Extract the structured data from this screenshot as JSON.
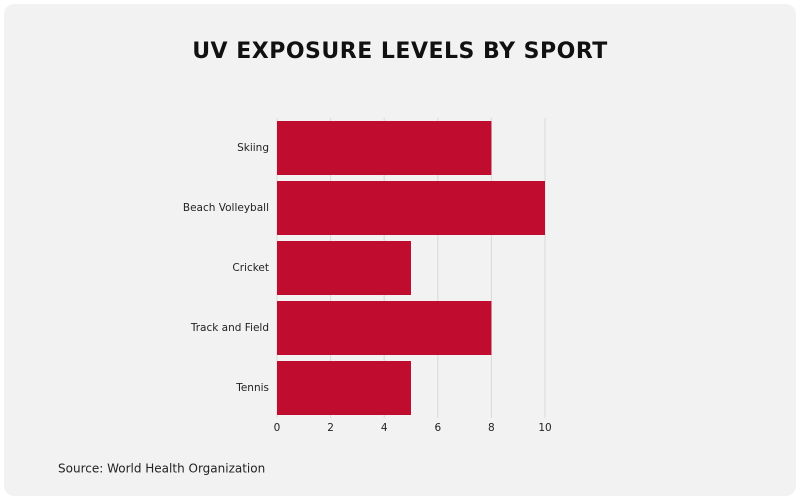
{
  "chart_data": {
    "type": "bar",
    "orientation": "horizontal",
    "title": "UV EXPOSURE LEVELS BY SPORT",
    "categories": [
      "Skiing",
      "Beach Volleyball",
      "Cricket",
      "Track and Field",
      "Tennis"
    ],
    "values": [
      8,
      10,
      5,
      8,
      5
    ],
    "color": "#c00c2e",
    "xlim": [
      0,
      10
    ],
    "xticks": [
      0,
      2,
      4,
      6,
      8,
      10
    ],
    "grid": true,
    "source": "Source: World Health Organization"
  }
}
